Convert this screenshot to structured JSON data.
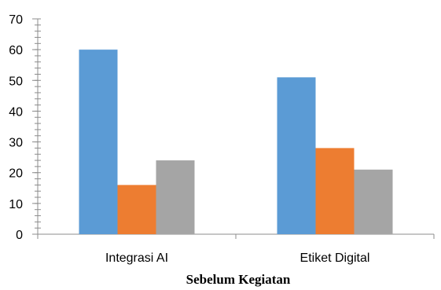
{
  "chart_data": {
    "type": "bar",
    "title": "",
    "xlabel": "Sebelum Kegiatan",
    "ylabel": "",
    "ylim": [
      0,
      70
    ],
    "y_ticks": [
      "0",
      "10",
      "20",
      "30",
      "40",
      "50",
      "60",
      "70"
    ],
    "categories": [
      "Integrasi AI",
      "Etiket Digital"
    ],
    "series": [
      {
        "values": [
          60,
          51
        ],
        "color": "#5B9BD5"
      },
      {
        "values": [
          16,
          28
        ],
        "color": "#ED7D31"
      },
      {
        "values": [
          24,
          21
        ],
        "color": "#A5A5A5"
      }
    ],
    "grid": false,
    "legend": "none"
  }
}
